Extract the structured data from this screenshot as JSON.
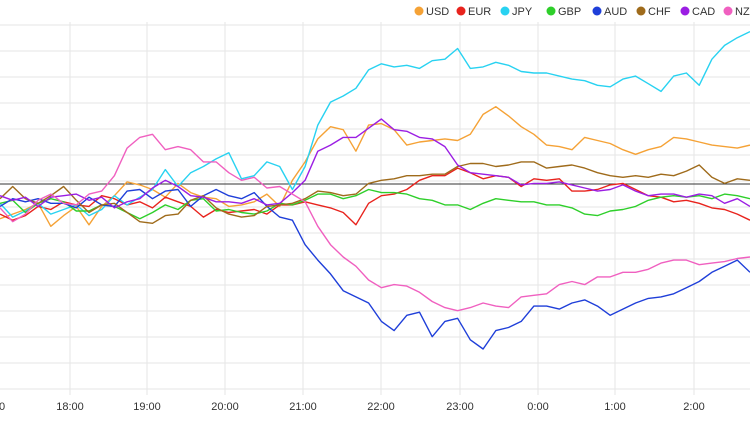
{
  "chart_data": {
    "type": "line",
    "title": "",
    "xlabel": "",
    "ylabel": "",
    "x_ticks": [
      "0",
      "18:00",
      "19:00",
      "20:00",
      "21:00",
      "22:00",
      "23:00",
      "0:00",
      "1:00",
      "2:00"
    ],
    "grid": true,
    "legend_position": "top-right",
    "zero_line": true,
    "series": [
      {
        "name": "USD",
        "color": "#f5a236",
        "values": [
          115,
          118,
          121,
          125,
          110,
          117,
          123,
          111,
          123,
          130,
          139,
          137,
          134,
          129,
          138,
          132,
          129,
          128,
          123,
          124,
          126,
          131,
          123,
          140,
          152,
          167,
          175,
          173,
          159,
          176,
          177,
          173,
          163,
          165,
          166,
          167,
          166,
          170,
          183,
          188,
          182,
          175,
          170,
          163,
          162,
          160,
          168,
          166,
          164,
          160,
          157,
          160,
          162,
          168,
          167,
          165,
          163,
          162,
          161,
          163
        ]
      },
      {
        "name": "EUR",
        "color": "#e8231d",
        "values": [
          118,
          114,
          117,
          123,
          121,
          126,
          124,
          123,
          130,
          128,
          124,
          126,
          122,
          129,
          126,
          123,
          116,
          121,
          119,
          120,
          121,
          118,
          124,
          124,
          126,
          124,
          122,
          119,
          111,
          125,
          130,
          131,
          134,
          140,
          143,
          143,
          148,
          145,
          141,
          143,
          142,
          136,
          141,
          140,
          141,
          133,
          133,
          134,
          137,
          138,
          134,
          130,
          129,
          126,
          127,
          125,
          122,
          121,
          118,
          114
        ]
      },
      {
        "name": "JPY",
        "color": "#28d2f1",
        "values": [
          125,
          116,
          120,
          125,
          118,
          121,
          124,
          117,
          121,
          130,
          124,
          129,
          134,
          147,
          136,
          145,
          149,
          154,
          158,
          141,
          143,
          152,
          149,
          134,
          149,
          176,
          191,
          195,
          200,
          212,
          216,
          214,
          215,
          213,
          218,
          219,
          226,
          213,
          214,
          217,
          215,
          211,
          210,
          210,
          208,
          206,
          205,
          202,
          201,
          206,
          208,
          203,
          198,
          208,
          210,
          202,
          219,
          228,
          233,
          237
        ]
      },
      {
        "name": "GBP",
        "color": "#2ecf2a",
        "values": [
          125,
          127,
          119,
          125,
          128,
          126,
          120,
          120,
          124,
          123,
          119,
          115,
          119,
          124,
          121,
          127,
          128,
          120,
          121,
          119,
          118,
          120,
          125,
          124,
          127,
          131,
          131,
          128,
          130,
          134,
          132,
          132,
          131,
          128,
          127,
          124,
          124,
          121,
          125,
          128,
          127,
          126,
          126,
          124,
          124,
          122,
          118,
          117,
          120,
          121,
          123,
          127,
          129,
          130,
          129,
          130,
          128,
          131,
          130,
          128
        ]
      },
      {
        "name": "AUD",
        "color": "#1f3fd9",
        "values": [
          123,
          128,
          126,
          128,
          125,
          125,
          122,
          129,
          124,
          123,
          133,
          134,
          128,
          133,
          134,
          123,
          130,
          134,
          130,
          128,
          132,
          123,
          116,
          114,
          98,
          88,
          79,
          68,
          64,
          60,
          48,
          42,
          52,
          54,
          38,
          48,
          50,
          36,
          30,
          42,
          44,
          48,
          58,
          58,
          56,
          60,
          62,
          58,
          52,
          56,
          60,
          63,
          64,
          66,
          70,
          74,
          80,
          84,
          88,
          80
        ]
      },
      {
        "name": "CHF",
        "color": "#9f6b1b",
        "values": [
          128,
          136,
          128,
          125,
          130,
          136,
          127,
          119,
          124,
          125,
          119,
          113,
          112,
          117,
          118,
          127,
          130,
          122,
          118,
          116,
          117,
          123,
          124,
          125,
          128,
          133,
          132,
          130,
          131,
          138,
          140,
          141,
          143,
          143,
          144,
          144,
          149,
          151,
          151,
          149,
          150,
          152,
          152,
          148,
          149,
          150,
          148,
          145,
          143,
          142,
          143,
          142,
          144,
          143,
          146,
          150,
          142,
          138,
          141,
          140
        ]
      },
      {
        "name": "CAD",
        "color": "#9b1ee3",
        "values": [
          130,
          127,
          129,
          123,
          129,
          130,
          131,
          127,
          129,
          122,
          126,
          128,
          135,
          140,
          136,
          130,
          129,
          126,
          126,
          125,
          128,
          124,
          125,
          132,
          140,
          159,
          163,
          168,
          168,
          174,
          180,
          173,
          172,
          168,
          167,
          162,
          150,
          145,
          144,
          143,
          142,
          137,
          138,
          138,
          139,
          137,
          135,
          133,
          134,
          137,
          133,
          130,
          131,
          131,
          129,
          131,
          130,
          125,
          128,
          123
        ]
      },
      {
        "name": "NZD",
        "color": "#f060c0",
        "values": [
          122,
          113,
          118,
          127,
          131,
          125,
          124,
          131,
          133,
          143,
          161,
          168,
          170,
          160,
          162,
          160,
          152,
          152,
          145,
          140,
          142,
          135,
          136,
          131,
          126,
          110,
          98,
          90,
          84,
          75,
          70,
          72,
          71,
          67,
          61,
          57,
          55,
          57,
          60,
          58,
          57,
          64,
          65,
          66,
          72,
          74,
          72,
          77,
          77,
          80,
          80,
          82,
          86,
          88,
          88,
          85,
          86,
          87,
          89,
          90
        ]
      }
    ]
  }
}
